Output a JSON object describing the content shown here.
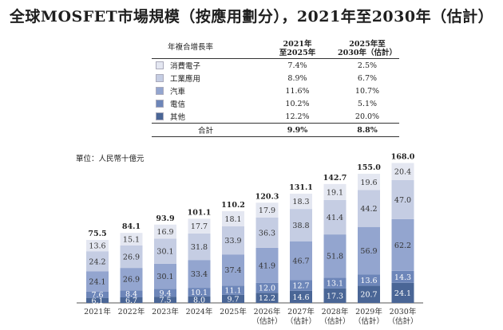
{
  "title": "全球MOSFET市場規模（按應用劃分），2021年至2030年（估計）",
  "table": {
    "header_label": "年複合增長率",
    "col1": [
      "2021年",
      "至2025年"
    ],
    "col2": [
      "2025年至",
      "2030年（估計）"
    ],
    "rows": [
      {
        "label": "消費電子",
        "v1": "7.4%",
        "v2": "2.5%"
      },
      {
        "label": "工業應用",
        "v1": "8.9%",
        "v2": "6.7%"
      },
      {
        "label": "汽車",
        "v1": "11.6%",
        "v2": "10.7%"
      },
      {
        "label": "電信",
        "v1": "10.2%",
        "v2": "5.1%"
      },
      {
        "label": "其他",
        "v1": "12.2%",
        "v2": "20.0%"
      }
    ],
    "total": {
      "label": "合計",
      "v1": "9.9%",
      "v2": "8.8%"
    }
  },
  "unit_label": "單位：人民幣十億元",
  "colors": [
    "#e4e7f1",
    "#c5cde3",
    "#93a5cf",
    "#6d86b9",
    "#4a6696"
  ],
  "chart_data": {
    "type": "bar",
    "stacked": true,
    "categories": [
      [
        "2021年"
      ],
      [
        "2022年"
      ],
      [
        "2023年"
      ],
      [
        "2024年"
      ],
      [
        "2025年"
      ],
      [
        "2026年",
        "（估計）"
      ],
      [
        "2027年",
        "（估計）"
      ],
      [
        "2028年",
        "（估計）"
      ],
      [
        "2029年",
        "（估計）"
      ],
      [
        "2030年",
        "（估計）"
      ]
    ],
    "totals": [
      "75.5",
      "84.1",
      "93.9",
      "101.1",
      "110.2",
      "120.3",
      "131.1",
      "142.7",
      "155.0",
      "168.0"
    ],
    "series": [
      {
        "name": "其他",
        "values": [
          6.1,
          6.7,
          7.5,
          8.0,
          9.7,
          12.2,
          14.6,
          17.3,
          20.7,
          24.1
        ]
      },
      {
        "name": "電信",
        "values": [
          7.6,
          8.4,
          9.4,
          10.1,
          11.1,
          12.0,
          12.7,
          13.1,
          13.6,
          14.3
        ]
      },
      {
        "name": "汽車",
        "values": [
          24.1,
          26.9,
          30.1,
          33.4,
          37.4,
          41.9,
          46.7,
          51.8,
          56.9,
          62.2
        ]
      },
      {
        "name": "工業應用",
        "values": [
          24.2,
          26.9,
          30.1,
          31.8,
          33.9,
          36.3,
          38.8,
          41.4,
          44.2,
          47.0
        ]
      },
      {
        "name": "消費電子",
        "values": [
          13.6,
          15.1,
          16.9,
          17.7,
          18.1,
          17.9,
          18.3,
          19.1,
          19.6,
          20.4
        ]
      }
    ]
  }
}
